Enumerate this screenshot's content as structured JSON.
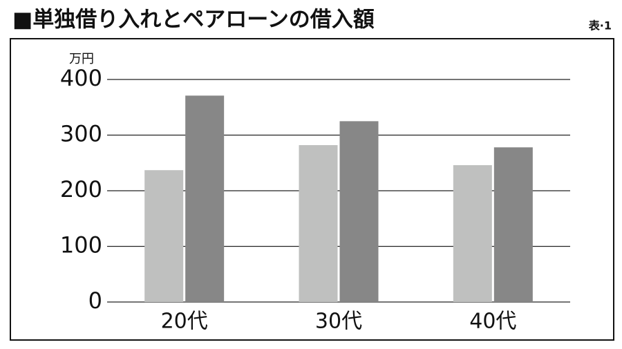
{
  "chart_data": {
    "type": "bar",
    "title": "■単独借り入れとペアローンの借入額",
    "table_label": "表·1",
    "y_unit": "万円",
    "categories": [
      "20代",
      "30代",
      "40代"
    ],
    "series": [
      {
        "color": "#bfc0bf",
        "values": [
          237,
          282,
          246
        ]
      },
      {
        "color": "#878787",
        "values": [
          371,
          325,
          278
        ]
      }
    ],
    "ylim": [
      0,
      400
    ],
    "yticks": [
      0,
      100,
      200,
      300,
      400
    ],
    "grid": true
  }
}
